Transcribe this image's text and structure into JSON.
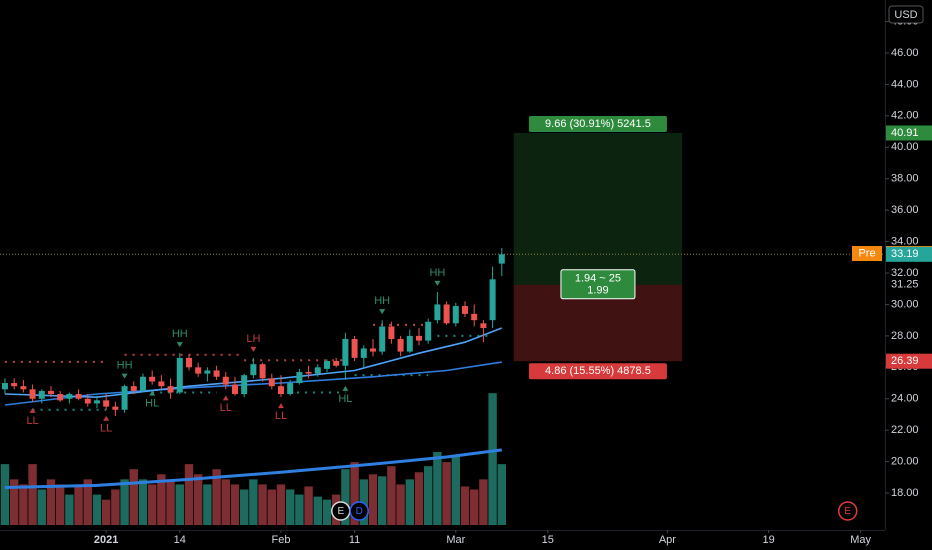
{
  "chart_data": {
    "type": "candlestick",
    "currency": "USD",
    "xlim": [
      -0.54,
      95.65
    ],
    "ylim": [
      15.65,
      49.37
    ],
    "xticks": [
      {
        "value": 11,
        "label": "2021"
      },
      {
        "value": 19,
        "label": "14"
      },
      {
        "value": 30,
        "label": "Feb"
      },
      {
        "value": 38,
        "label": "11"
      },
      {
        "value": 49,
        "label": "Mar"
      },
      {
        "value": 59,
        "label": "15"
      },
      {
        "value": 72,
        "label": "Apr"
      },
      {
        "value": 83,
        "label": "19"
      },
      {
        "value": 93,
        "label": "May"
      }
    ],
    "yticks": [
      {
        "value": 18,
        "label": "18.00"
      },
      {
        "value": 20,
        "label": "20.00"
      },
      {
        "value": 22,
        "label": "22.00"
      },
      {
        "value": 24,
        "label": "24.00"
      },
      {
        "value": 26,
        "label": "26.00"
      },
      {
        "value": 28,
        "label": "28.00"
      },
      {
        "value": 30,
        "label": "30.00"
      },
      {
        "value": 32,
        "label": "32.00"
      },
      {
        "value": 34,
        "label": "34.00"
      },
      {
        "value": 36,
        "label": "36.00"
      },
      {
        "value": 38,
        "label": "38.00"
      },
      {
        "value": 40,
        "label": "40.00"
      },
      {
        "value": 42,
        "label": "42.00"
      },
      {
        "value": 44,
        "label": "44.00"
      },
      {
        "value": 46,
        "label": "46.00"
      },
      {
        "value": 48,
        "label": "48.00"
      }
    ],
    "grid": false,
    "up_color": "#26a69a",
    "down_color": "#ef5350",
    "ohlc": {
      "open": [
        24.6,
        25.0,
        24.8,
        24.6,
        24.0,
        24.5,
        24.3,
        24.0,
        24.3,
        24.0,
        23.7,
        23.9,
        23.5,
        23.3,
        24.8,
        24.5,
        25.4,
        25.1,
        24.8,
        24.4,
        26.6,
        26.0,
        25.6,
        25.8,
        25.4,
        24.9,
        24.3,
        25.5,
        26.2,
        25.3,
        24.8,
        24.3,
        25.0,
        25.7,
        25.6,
        25.9,
        26.4,
        26.1,
        27.8,
        26.6,
        27.2,
        27.0,
        28.6,
        27.8,
        27.0,
        28.0,
        27.7,
        29.0,
        30.0,
        28.8,
        29.9,
        29.4,
        28.8,
        29.0,
        32.6
      ],
      "high": [
        25.3,
        25.3,
        25.2,
        24.9,
        24.6,
        24.8,
        24.5,
        24.4,
        24.6,
        24.3,
        24.2,
        24.3,
        23.8,
        24.9,
        25.1,
        25.6,
        25.8,
        25.5,
        25.3,
        26.9,
        26.8,
        26.3,
        26.0,
        26.1,
        25.7,
        25.4,
        25.6,
        26.6,
        26.3,
        25.6,
        25.5,
        25.2,
        25.9,
        26.1,
        26.2,
        26.5,
        26.6,
        28.2,
        28.0,
        27.4,
        27.8,
        29.0,
        28.9,
        28.0,
        28.4,
        28.5,
        29.1,
        30.8,
        30.2,
        30.1,
        30.2,
        30.0,
        29.0,
        32.4,
        33.6
      ],
      "low": [
        24.3,
        24.6,
        24.4,
        23.8,
        23.7,
        24.1,
        23.8,
        23.7,
        23.9,
        23.5,
        23.4,
        23.3,
        22.9,
        23.1,
        24.3,
        24.4,
        24.9,
        24.6,
        24.0,
        24.3,
        25.8,
        25.4,
        25.1,
        25.2,
        24.6,
        24.2,
        24.1,
        25.3,
        25.1,
        24.6,
        24.1,
        24.2,
        24.9,
        25.3,
        25.4,
        25.7,
        26.0,
        25.2,
        26.4,
        26.0,
        26.7,
        26.8,
        27.5,
        26.7,
        26.9,
        27.4,
        27.5,
        28.8,
        28.7,
        28.6,
        29.2,
        28.6,
        27.6,
        28.5,
        31.8
      ],
      "close": [
        25.0,
        24.8,
        24.6,
        24.0,
        24.5,
        24.3,
        23.9,
        24.3,
        24.0,
        23.7,
        23.9,
        23.5,
        23.3,
        24.8,
        24.5,
        25.4,
        25.1,
        24.8,
        24.4,
        26.6,
        26.0,
        25.6,
        25.8,
        25.4,
        24.9,
        24.3,
        25.5,
        26.2,
        25.3,
        24.8,
        24.3,
        25.0,
        25.7,
        25.6,
        26.0,
        26.4,
        26.1,
        27.8,
        26.6,
        27.2,
        27.0,
        28.6,
        27.8,
        27.0,
        28.0,
        27.7,
        28.9,
        30.0,
        28.8,
        29.9,
        29.4,
        29.0,
        28.5,
        31.6,
        33.19
      ]
    },
    "volume": {
      "vlim": [
        0,
        140
      ],
      "up_color": "#1c6b5e",
      "down_color": "#7c2e33",
      "values": [
        60,
        45,
        40,
        60,
        35,
        45,
        40,
        30,
        40,
        45,
        30,
        25,
        35,
        45,
        55,
        45,
        40,
        50,
        45,
        40,
        60,
        50,
        40,
        55,
        45,
        40,
        35,
        45,
        40,
        35,
        40,
        35,
        30,
        38,
        28,
        25,
        30,
        55,
        62,
        45,
        50,
        48,
        58,
        40,
        45,
        52,
        58,
        72,
        62,
        68,
        38,
        35,
        45,
        130,
        60
      ],
      "ma": {
        "color": "#2f7fe0",
        "x": [
          0,
          10,
          20,
          30,
          40,
          48,
          54
        ],
        "values": [
          37,
          39,
          45,
          52,
          60,
          67,
          74
        ]
      }
    },
    "moving_averages": [
      {
        "color": "#2f7fe0",
        "x": [
          0,
          10,
          20,
          30,
          40,
          48,
          54
        ],
        "values": [
          23.6,
          24.3,
          24.7,
          25.0,
          25.4,
          25.8,
          26.33
        ]
      },
      {
        "color": "#4fa3f7",
        "x": [
          0,
          10,
          20,
          30,
          38,
          45,
          50,
          54
        ],
        "values": [
          24.3,
          24.1,
          24.8,
          25.3,
          25.8,
          26.9,
          27.6,
          28.5
        ]
      }
    ],
    "levels": [
      {
        "color": "#ef5350",
        "value": 26.35,
        "x": [
          0,
          11
        ]
      },
      {
        "color": "#ef5350",
        "value": 26.8,
        "x": [
          13,
          26
        ]
      },
      {
        "color": "#ef5350",
        "value": 26.45,
        "x": [
          26,
          37
        ]
      },
      {
        "color": "#ef5350",
        "value": 28.7,
        "x": [
          40,
          46
        ]
      },
      {
        "color": "#26a69a",
        "value": 23.3,
        "x": [
          3,
          11
        ]
      },
      {
        "color": "#26a69a",
        "value": 24.4,
        "x": [
          16,
          23
        ]
      },
      {
        "color": "#26a69a",
        "value": 24.4,
        "x": [
          30,
          37
        ]
      },
      {
        "color": "#26a69a",
        "value": 25.5,
        "x": [
          38,
          46
        ]
      },
      {
        "color": "#26a69a",
        "value": 28.0,
        "x": [
          47,
          53
        ]
      }
    ],
    "annotations": [
      {
        "text": "LL",
        "x": 3,
        "side": "below",
        "color": "#c0393f"
      },
      {
        "text": "LL",
        "x": 11,
        "side": "below",
        "color": "#c0393f"
      },
      {
        "text": "HH",
        "x": 13,
        "side": "above",
        "color": "#2e8b6e"
      },
      {
        "text": "HL",
        "x": 16,
        "side": "below",
        "color": "#2e8b6e"
      },
      {
        "text": "HH",
        "x": 19,
        "side": "above",
        "color": "#2e8b6e"
      },
      {
        "text": "LL",
        "x": 24,
        "side": "below",
        "color": "#c0393f"
      },
      {
        "text": "LH",
        "x": 27,
        "side": "above",
        "color": "#c0393f"
      },
      {
        "text": "LL",
        "x": 30,
        "side": "below",
        "color": "#c0393f"
      },
      {
        "text": "HL",
        "x": 37,
        "side": "below",
        "color": "#2e8b6e"
      },
      {
        "text": "HH",
        "x": 41,
        "side": "above",
        "color": "#2e8b6e"
      },
      {
        "text": "HH",
        "x": 47,
        "side": "above",
        "color": "#2e8b6e"
      }
    ],
    "position": {
      "x": [
        55.3,
        73.6
      ],
      "entry": 31.25,
      "target": 40.91,
      "stop": 26.39,
      "target_label": "9.66 (30.91%) 5241.5",
      "ratio_label": "1.94 ~ 25",
      "qty_label": "1.99",
      "stop_label": "4.86 (15.55%) 4878.5",
      "profit_color": "#2e8b3e",
      "loss_color": "#d63a3a"
    },
    "premarket": {
      "label": "Pre",
      "value": 33.24,
      "color": "#f5890f"
    },
    "events": [
      {
        "label": "E",
        "x": 36.5,
        "color": "#d8d8d8"
      },
      {
        "label": "D",
        "x": 38.5,
        "color": "#2962ff"
      },
      {
        "label": "E",
        "x": 91.6,
        "color": "#e23b3b"
      }
    ]
  }
}
